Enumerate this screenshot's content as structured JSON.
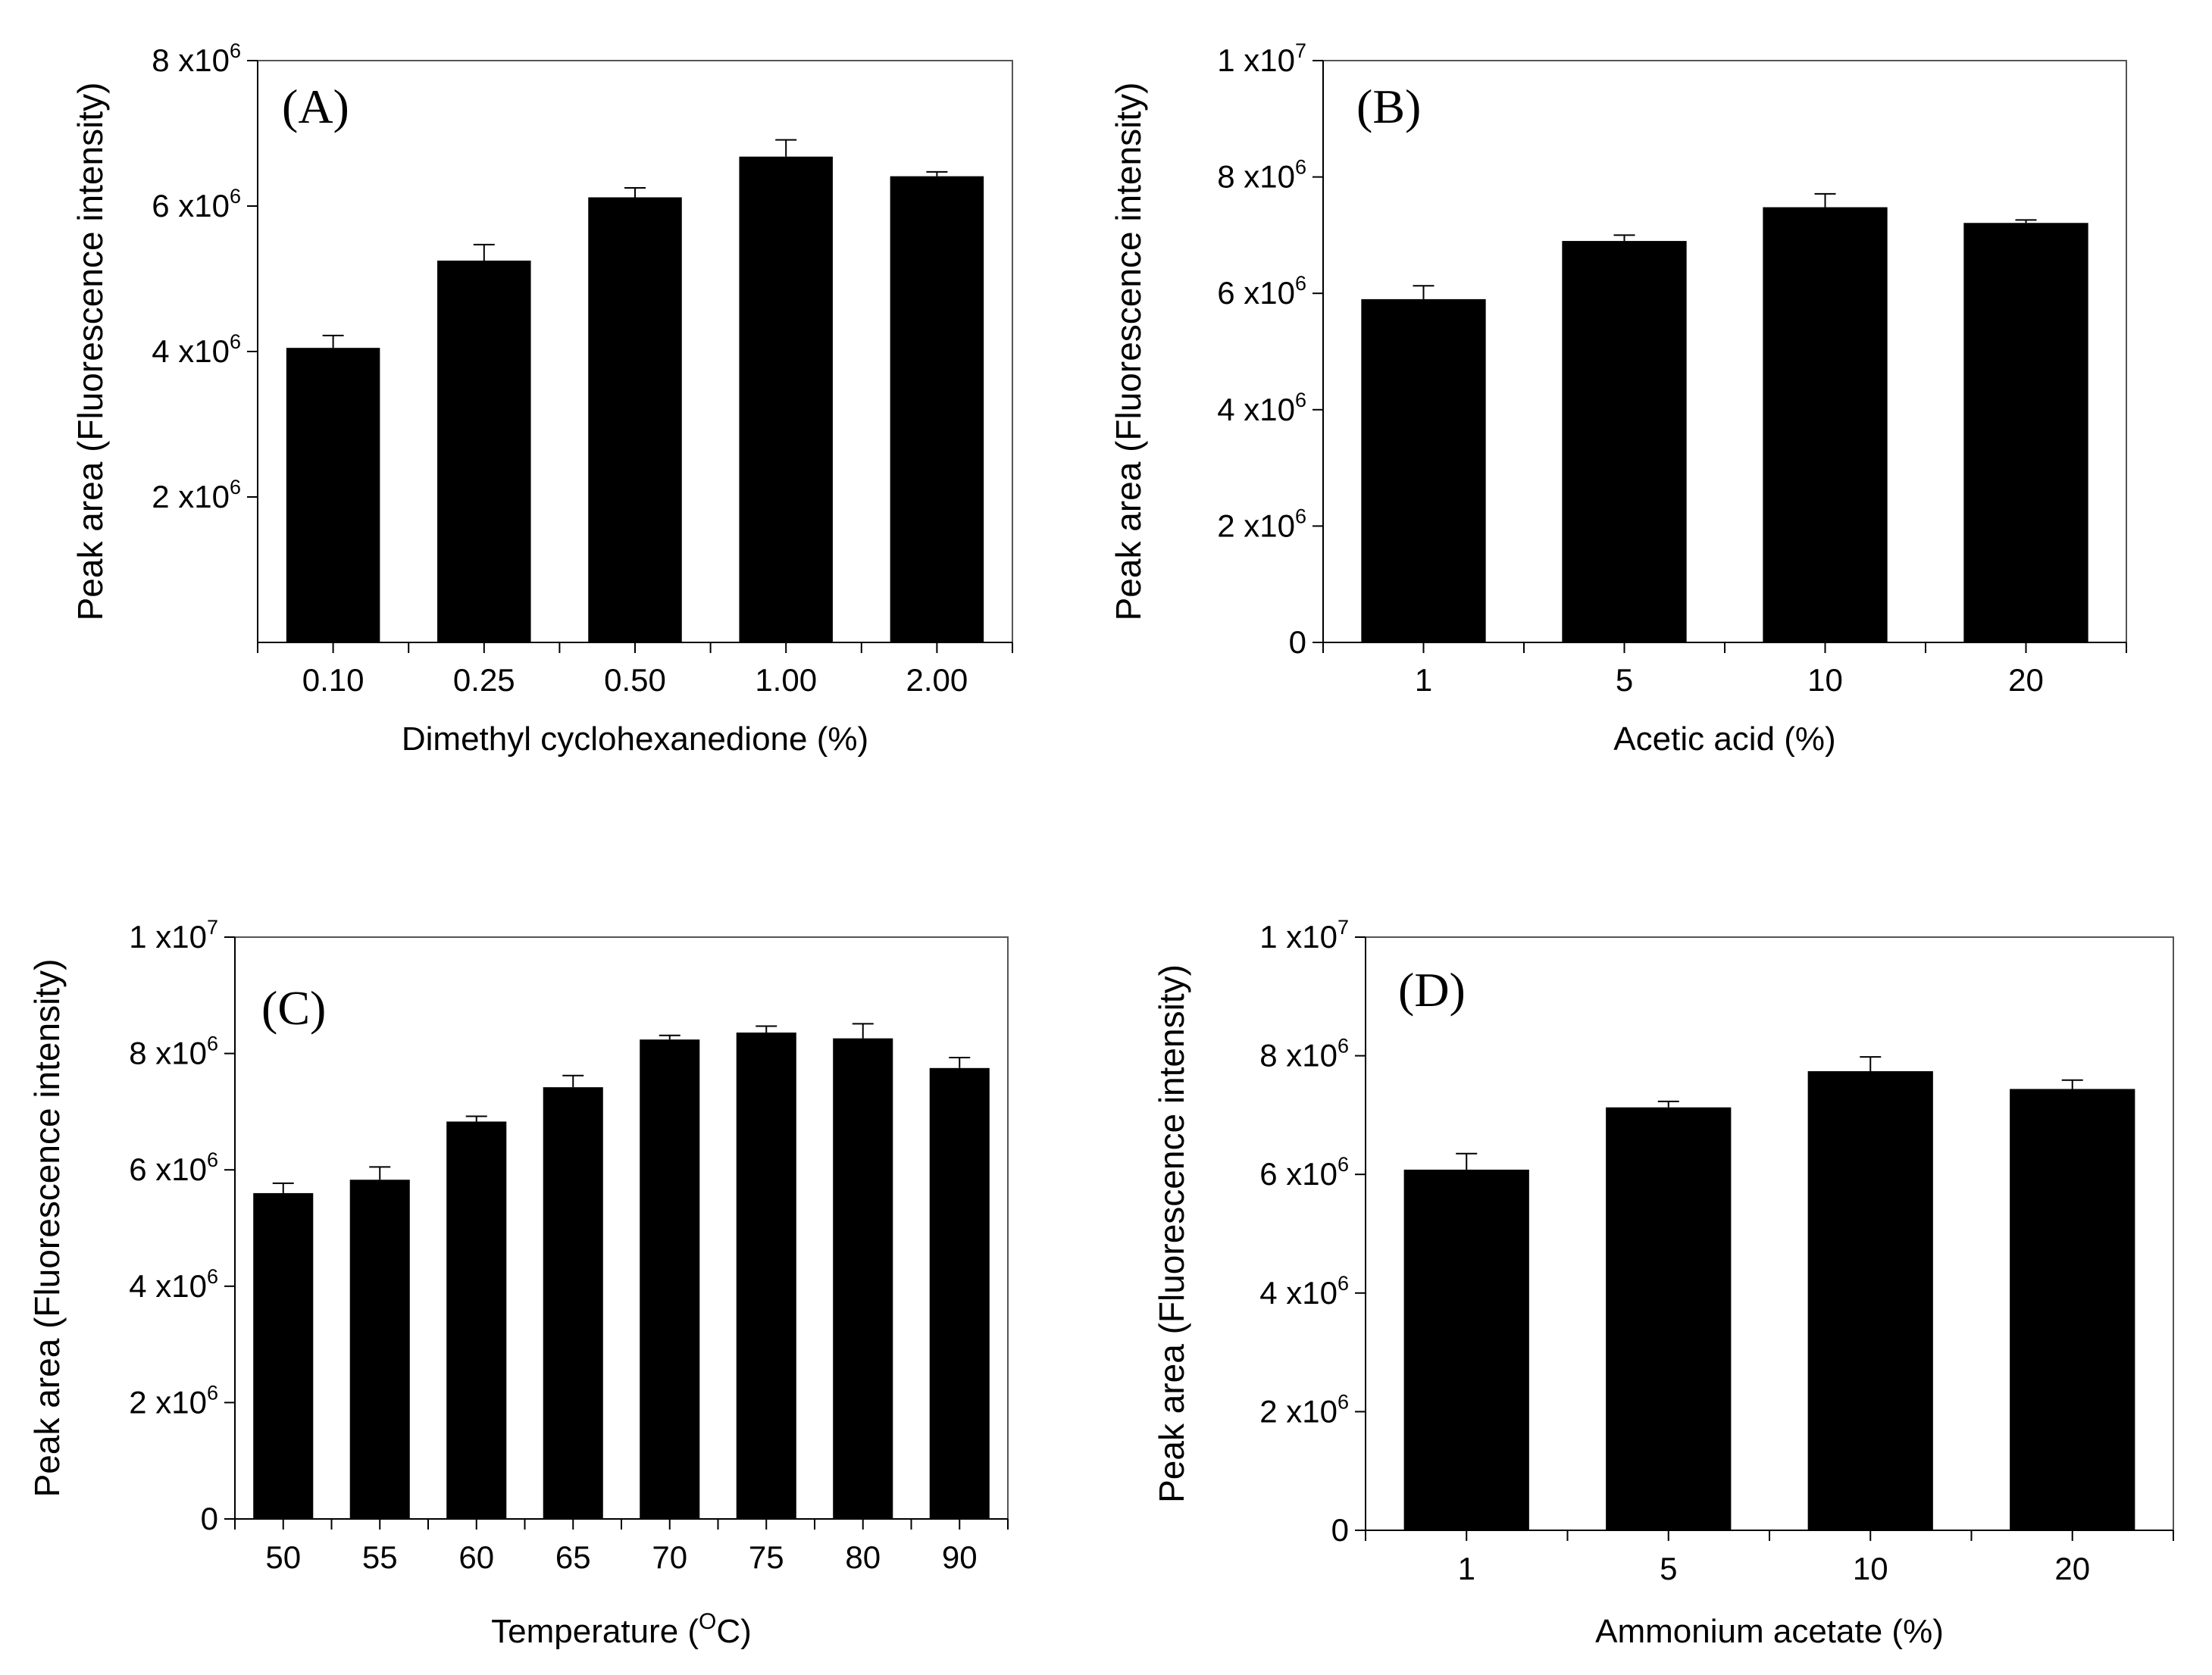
{
  "chart_data": [
    {
      "type": "bar",
      "panel_label": "(A)",
      "xlabel": "Dimethyl cyclohexanedione (%)",
      "ylabel": "Peak area (Fluorescence intensity)",
      "categories": [
        "0.10",
        "0.25",
        "0.50",
        "1.00",
        "2.00"
      ],
      "values": [
        4050000,
        5250000,
        6120000,
        6680000,
        6410000
      ],
      "errors": [
        170000,
        220000,
        130000,
        230000,
        60000
      ],
      "ylim": [
        0,
        8000000
      ],
      "yticks": [
        {
          "value": 2000000,
          "mantissa": "2 x10",
          "exp": "6"
        },
        {
          "value": 4000000,
          "mantissa": "4 x10",
          "exp": "6"
        },
        {
          "value": 6000000,
          "mantissa": "6 x10",
          "exp": "6"
        },
        {
          "value": 8000000,
          "mantissa": "8 x10",
          "exp": "6"
        }
      ]
    },
    {
      "type": "bar",
      "panel_label": "(B)",
      "xlabel": "Acetic acid (%)",
      "ylabel": "Peak area (Fluorescence intensity)",
      "categories": [
        "1",
        "5",
        "10",
        "20"
      ],
      "values": [
        5900000,
        6900000,
        7480000,
        7210000
      ],
      "errors": [
        230000,
        100000,
        230000,
        50000
      ],
      "ylim": [
        0,
        10000000
      ],
      "yticks": [
        {
          "value": 0,
          "mantissa": "0",
          "exp": ""
        },
        {
          "value": 2000000,
          "mantissa": "2 x10",
          "exp": "6"
        },
        {
          "value": 4000000,
          "mantissa": "4 x10",
          "exp": "6"
        },
        {
          "value": 6000000,
          "mantissa": "6 x10",
          "exp": "6"
        },
        {
          "value": 8000000,
          "mantissa": "8 x10",
          "exp": "6"
        },
        {
          "value": 10000000,
          "mantissa": "1 x10",
          "exp": "7"
        }
      ]
    },
    {
      "type": "bar",
      "panel_label": "(C)",
      "xlabel_main": "Temperature (",
      "xlabel_sup": "O",
      "xlabel_tail": "C)",
      "ylabel": "Peak area (Fluorescence intensity)",
      "categories": [
        "50",
        "55",
        "60",
        "65",
        "70",
        "75",
        "80",
        "90"
      ],
      "values": [
        5600000,
        5830000,
        6830000,
        7420000,
        8240000,
        8360000,
        8260000,
        7750000
      ],
      "errors": [
        170000,
        220000,
        90000,
        200000,
        70000,
        110000,
        250000,
        180000
      ],
      "ylim": [
        0,
        10000000
      ],
      "yticks": [
        {
          "value": 0,
          "mantissa": "0",
          "exp": ""
        },
        {
          "value": 2000000,
          "mantissa": "2 x10",
          "exp": "6"
        },
        {
          "value": 4000000,
          "mantissa": "4 x10",
          "exp": "6"
        },
        {
          "value": 6000000,
          "mantissa": "6 x10",
          "exp": "6"
        },
        {
          "value": 8000000,
          "mantissa": "8 x10",
          "exp": "6"
        },
        {
          "value": 10000000,
          "mantissa": "1 x10",
          "exp": "7"
        }
      ]
    },
    {
      "type": "bar",
      "panel_label": "(D)",
      "xlabel": "Ammonium acetate (%)",
      "ylabel": "Peak area (Fluorescence intensity)",
      "categories": [
        "1",
        "5",
        "10",
        "20"
      ],
      "values": [
        6080000,
        7130000,
        7740000,
        7440000
      ],
      "errors": [
        270000,
        100000,
        240000,
        150000
      ],
      "ylim": [
        0,
        10000000
      ],
      "yticks": [
        {
          "value": 0,
          "mantissa": "0",
          "exp": ""
        },
        {
          "value": 2000000,
          "mantissa": "2 x10",
          "exp": "6"
        },
        {
          "value": 4000000,
          "mantissa": "4 x10",
          "exp": "6"
        },
        {
          "value": 6000000,
          "mantissa": "6 x10",
          "exp": "6"
        },
        {
          "value": 8000000,
          "mantissa": "8 x10",
          "exp": "6"
        },
        {
          "value": 10000000,
          "mantissa": "1 x10",
          "exp": "7"
        }
      ]
    }
  ],
  "style": {
    "bar_color": "#000000",
    "axis_color": "#000000",
    "frame_color": "#555555",
    "background": "#ffffff"
  }
}
